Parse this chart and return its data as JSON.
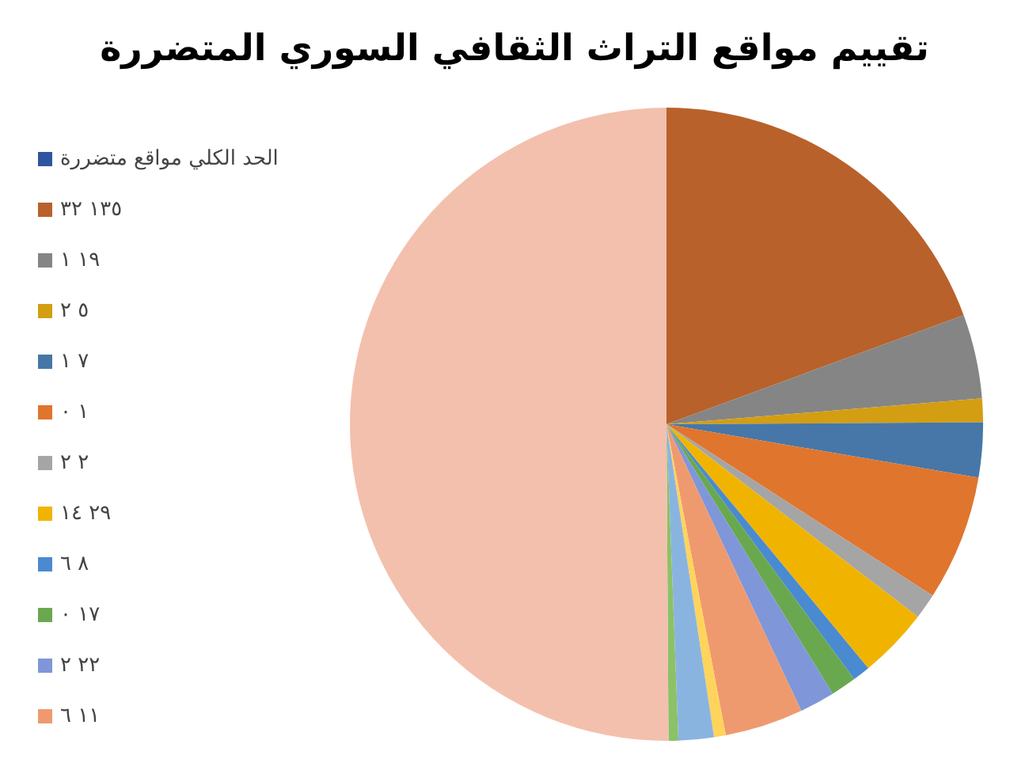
{
  "chart_data": {
    "type": "pie",
    "title": "تقييم مواقع التراث الثقافي السوري المتضررة",
    "legend": "left",
    "categories": [
      "الحد الكلي مواقع متضررة",
      "١٣٥ ٣٢",
      "١٩ ١",
      "٥ ٢",
      "٧ ١",
      "١ ٠",
      "٢ ٢",
      "٢٩ ١٤",
      "٨ ٦",
      "١٧ ٠",
      "٢٢ ٢",
      "١١ ٦",
      null,
      null,
      null,
      null
    ],
    "values": [
      0,
      19.4,
      4.3,
      1.2,
      2.8,
      6.4,
      1.3,
      3.6,
      0.9,
      1.3,
      1.8,
      4.0,
      0.6,
      1.8,
      0.5,
      50.1
    ],
    "colors": [
      "#2f55a0",
      "#b9612a",
      "#858585",
      "#d39e11",
      "#4677a8",
      "#e0752d",
      "#a5a5a5",
      "#f0b400",
      "#4a8ad0",
      "#6aa84f",
      "#7f96d8",
      "#ef9a6e",
      "#ffd45c",
      "#8ab4e0",
      "#8cc168",
      "#f3c0ae"
    ]
  }
}
